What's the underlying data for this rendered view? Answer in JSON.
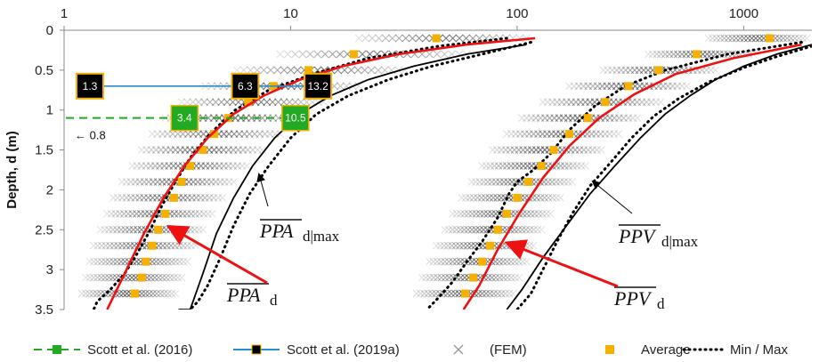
{
  "chart_data": {
    "type": "scatter",
    "xscale": "log",
    "xlim": [
      1,
      2000
    ],
    "ylim": [
      3.5,
      0
    ],
    "ylabel": "Depth, d (m)",
    "x_ticks": [
      {
        "v": 1,
        "label": "1"
      },
      {
        "v": 10,
        "label": "10"
      },
      {
        "v": 100,
        "label": "100"
      },
      {
        "v": 1000,
        "label": "1000"
      }
    ],
    "y_ticks": [
      {
        "v": 0,
        "label": "0"
      },
      {
        "v": 0.5,
        "label": "0.5"
      },
      {
        "v": 1,
        "label": "1"
      },
      {
        "v": 1.5,
        "label": "1.5"
      },
      {
        "v": 2,
        "label": "2"
      },
      {
        "v": 2.5,
        "label": "2.5"
      },
      {
        "v": 3,
        "label": "3"
      },
      {
        "v": 3.5,
        "label": "3.5"
      }
    ],
    "grid": false,
    "legend_position": "bottom",
    "colors": {
      "avg": "#f5b000",
      "fit": "#ee1111",
      "envelope": "#000000",
      "scott2016": "#22aa22",
      "scott2019": "#2a8fc8",
      "fem": "#333333"
    },
    "ppa": {
      "avg_depths": [
        0.1,
        0.3,
        0.5,
        0.7,
        0.9,
        1.1,
        1.3,
        1.5,
        1.7,
        1.9,
        2.1,
        2.3,
        2.5,
        2.7,
        2.9,
        3.1,
        3.3
      ],
      "avg_values": [
        44,
        19,
        12,
        8.4,
        6.5,
        5.3,
        4.6,
        4.1,
        3.6,
        3.3,
        3.05,
        2.8,
        2.6,
        2.45,
        2.3,
        2.2,
        2.05
      ],
      "fit_curve": {
        "x": [
          120,
          60,
          30,
          17,
          11,
          7.6,
          5.6,
          4.3,
          3.4,
          2.75,
          2.25,
          1.85,
          1.55
        ],
        "y": [
          0.1,
          0.18,
          0.3,
          0.45,
          0.62,
          0.82,
          1.05,
          1.35,
          1.7,
          2.1,
          2.55,
          3.05,
          3.5
        ]
      },
      "max_curve": {
        "x": [
          110,
          60,
          35,
          22,
          15,
          11,
          8.5,
          6.8,
          5.6,
          4.7,
          4.1,
          3.6,
          3.2
        ],
        "y": [
          0.18,
          0.3,
          0.45,
          0.62,
          0.82,
          1.05,
          1.35,
          1.7,
          2.1,
          2.55,
          3.05,
          3.5,
          3.5
        ]
      },
      "min_envelope": {
        "x": [
          90,
          45,
          22,
          12.5,
          8,
          5.7,
          4.4,
          3.6,
          3.1,
          2.7,
          2.4,
          2.1,
          1.85,
          1.6,
          1.4,
          1.35
        ],
        "y": [
          0.1,
          0.2,
          0.35,
          0.55,
          0.75,
          1.0,
          1.3,
          1.6,
          1.9,
          2.2,
          2.5,
          2.8,
          3.05,
          3.25,
          3.4,
          3.5
        ]
      },
      "max_envelope": {
        "x": [
          115,
          70,
          42,
          27,
          18,
          13,
          10,
          8,
          6.6,
          5.6,
          4.9,
          4.3,
          3.9,
          3.6
        ],
        "y": [
          0.15,
          0.3,
          0.45,
          0.62,
          0.82,
          1.05,
          1.35,
          1.7,
          2.05,
          2.45,
          2.85,
          3.2,
          3.4,
          3.5
        ]
      },
      "fem_min": [
        20,
        9,
        5.8,
        4.2,
        3.3,
        2.8,
        2.45,
        2.2,
        2.0,
        1.8,
        1.65,
        1.55,
        1.45,
        1.35,
        1.3,
        1.25,
        1.2
      ],
      "fem_max": [
        110,
        60,
        32,
        20,
        14,
        11,
        9,
        7.5,
        6.4,
        5.6,
        5.0,
        4.5,
        4.1,
        3.8,
        3.5,
        3.3,
        3.1
      ]
    },
    "ppv": {
      "avg_depths": [
        0.1,
        0.3,
        0.5,
        0.7,
        0.9,
        1.1,
        1.3,
        1.5,
        1.7,
        1.9,
        2.1,
        2.3,
        2.5,
        2.7,
        2.9,
        3.1,
        3.3
      ],
      "avg_values": [
        1300,
        620,
        420,
        310,
        245,
        205,
        170,
        145,
        128,
        112,
        100,
        90,
        82,
        76,
        70,
        64,
        59
      ],
      "fit_curve": {
        "x": [
          1800,
          900,
          500,
          330,
          230,
          170,
          130,
          102,
          82,
          68,
          58
        ],
        "y": [
          0.18,
          0.35,
          0.55,
          0.8,
          1.1,
          1.45,
          1.85,
          2.3,
          2.75,
          3.2,
          3.5
        ]
      },
      "max_curve": {
        "x": [
          2000,
          1400,
          1000,
          750,
          580,
          450,
          350,
          270,
          210,
          165,
          130,
          105,
          90
        ],
        "y": [
          0.18,
          0.3,
          0.45,
          0.62,
          0.82,
          1.05,
          1.35,
          1.7,
          2.05,
          2.45,
          2.85,
          3.25,
          3.5
        ]
      },
      "min_envelope": {
        "x": [
          1800,
          850,
          450,
          300,
          220,
          170,
          140,
          118,
          100,
          92,
          82,
          70,
          60,
          52,
          45,
          40
        ],
        "y": [
          0.15,
          0.3,
          0.5,
          0.7,
          0.95,
          1.25,
          1.55,
          1.75,
          1.9,
          2.05,
          2.35,
          2.65,
          2.9,
          3.15,
          3.35,
          3.5
        ]
      },
      "max_envelope": {
        "x": [
          2000,
          1400,
          1000,
          700,
          520,
          400,
          320,
          260,
          210,
          175,
          150,
          130,
          115,
          100
        ],
        "y": [
          0.2,
          0.33,
          0.47,
          0.65,
          0.85,
          1.08,
          1.35,
          1.65,
          1.95,
          2.3,
          2.65,
          3.0,
          3.3,
          3.5
        ]
      },
      "fem_min": [
        700,
        380,
        240,
        170,
        130,
        105,
        90,
        78,
        70,
        63,
        57,
        52,
        48,
        44,
        41,
        38,
        36
      ],
      "fem_max": [
        1900,
        1100,
        750,
        560,
        430,
        340,
        280,
        235,
        200,
        175,
        155,
        140,
        128,
        118,
        110,
        102,
        96
      ]
    },
    "scott_2016": {
      "depth": 1.1,
      "boxes": [
        {
          "x": 3.4,
          "label": "3.4"
        },
        {
          "x": 10.5,
          "label": "10.5"
        }
      ],
      "note": "← 0.8"
    },
    "scott_2019a": {
      "depth": 0.7,
      "boxes": [
        {
          "x": 1.3,
          "label": "1.3"
        },
        {
          "x": 6.3,
          "label": "6.3"
        },
        {
          "x": 13.2,
          "label": "13.2"
        }
      ]
    },
    "annotations": {
      "ppa_max": {
        "main": "PPA",
        "sub": "d|max"
      },
      "ppa_avg": {
        "main": "PPA",
        "sub": "d"
      },
      "ppv_max": {
        "main": "PPV",
        "sub": "d|max"
      },
      "ppv_avg": {
        "main": "PPV",
        "sub": "d"
      }
    },
    "legend": [
      {
        "key": "scott2016",
        "label": "Scott et al. (2016)"
      },
      {
        "key": "scott2019",
        "label": "Scott et al. (2019a)"
      },
      {
        "key": "fem",
        "label": "(FEM)"
      },
      {
        "key": "avg",
        "label": "Average"
      },
      {
        "key": "minmax",
        "label": "Min / Max"
      }
    ]
  }
}
